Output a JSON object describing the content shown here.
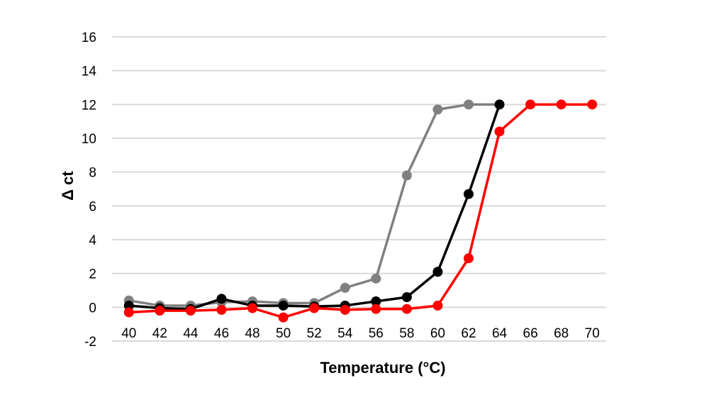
{
  "chart_data": {
    "type": "line",
    "xlabel": "Temperature  (°C)",
    "ylabel": "Δ ct",
    "ylim": [
      -2,
      16
    ],
    "yticks": [
      -2,
      0,
      2,
      4,
      6,
      8,
      10,
      12,
      14,
      16
    ],
    "x": [
      40,
      42,
      44,
      46,
      48,
      50,
      52,
      54,
      56,
      58,
      60,
      62,
      64,
      66,
      68,
      70
    ],
    "grid": true,
    "legend": "none",
    "series": [
      {
        "color": "#808080",
        "values": [
          0.4,
          0.1,
          0.1,
          0.3,
          0.35,
          0.25,
          0.25,
          1.15,
          1.7,
          7.8,
          11.7,
          12,
          12,
          null,
          null,
          null
        ]
      },
      {
        "color": "#000000",
        "values": [
          0.1,
          -0.05,
          -0.1,
          0.5,
          0.1,
          0.1,
          0.05,
          0.1,
          0.35,
          0.6,
          2.1,
          6.7,
          12,
          null,
          null,
          null
        ]
      },
      {
        "color": "#ff0000",
        "values": [
          -0.3,
          -0.2,
          -0.2,
          -0.15,
          -0.05,
          -0.6,
          -0.05,
          -0.15,
          -0.1,
          -0.1,
          0.1,
          2.9,
          10.4,
          12,
          12,
          12
        ]
      }
    ]
  }
}
